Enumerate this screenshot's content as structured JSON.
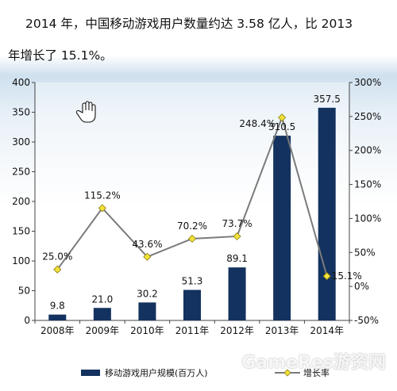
{
  "headline": {
    "line1": "2014 年，中国移动游戏用户数量约达 3.58 亿人，比 2013",
    "line2": "年增长了 15.1%。"
  },
  "watermark": "GameRes游资网",
  "chart_data": {
    "type": "bar",
    "categories": [
      "2008年",
      "2009年",
      "2010年",
      "2011年",
      "2012年",
      "2013年",
      "2014年"
    ],
    "series": [
      {
        "name": "移动游戏用户规模(百万人)",
        "type": "bar",
        "axis": "left",
        "values": [
          9.8,
          21.0,
          30.2,
          51.3,
          89.1,
          310.5,
          357.5
        ],
        "labels": [
          "9.8",
          "21.0",
          "30.2",
          "51.3",
          "89.1",
          "310.5",
          "357.5"
        ],
        "color": "#13325f"
      },
      {
        "name": "增长率",
        "type": "line",
        "axis": "right",
        "values": [
          25.0,
          115.2,
          43.6,
          70.2,
          73.7,
          248.4,
          15.1
        ],
        "labels": [
          "25.0%",
          "115.2%",
          "43.6%",
          "70.2%",
          "73.7%",
          "248.4%",
          "15.1%"
        ],
        "color": "#7a7a7a",
        "marker_color": "#f2e23a"
      }
    ],
    "y_left": {
      "range": [
        0,
        400
      ],
      "ticks": [
        "0",
        "50",
        "100",
        "150",
        "200",
        "250",
        "300",
        "350",
        "400"
      ]
    },
    "y_right": {
      "range": [
        -50,
        300
      ],
      "ticks": [
        "-50%",
        "0%",
        "50%",
        "100%",
        "150%",
        "200%",
        "250%",
        "300%"
      ]
    },
    "legend": {
      "placement": "bottom"
    },
    "grid": false
  }
}
